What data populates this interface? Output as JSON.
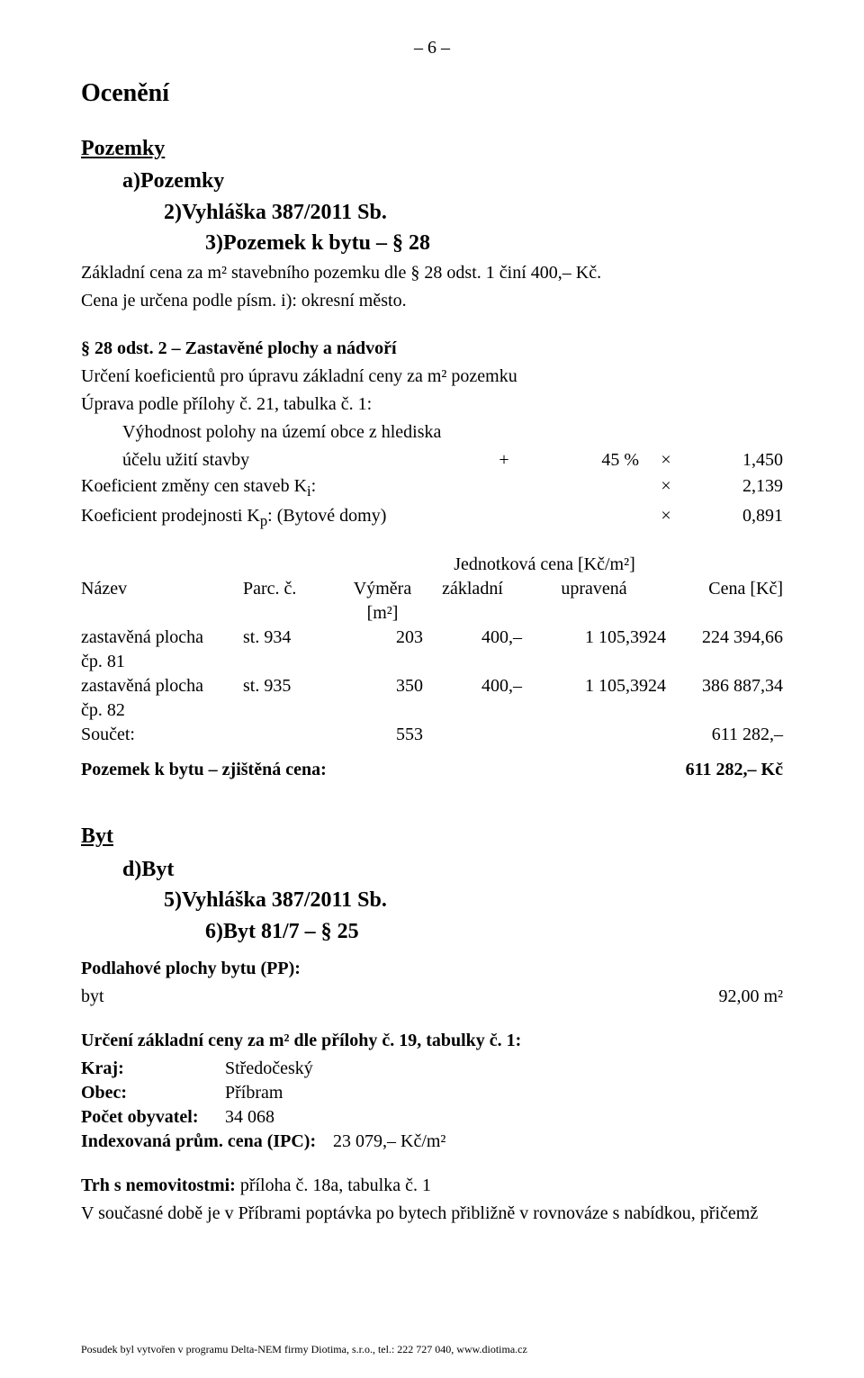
{
  "page_number": "– 6 –",
  "title": "Ocenění",
  "section_pozemky": "Pozemky",
  "lvl_a": "a)Pozemky",
  "lvl_2": "2)Vyhláška 387/2011 Sb.",
  "lvl_3": "3)Pozemek k bytu – § 28",
  "base_line1": "Základní cena za m² stavebního pozemku dle § 28 odst. 1 činí 400,– Kč.",
  "base_line2": "Cena je určena podle písm. i): okresní město.",
  "para28_line1": "§ 28 odst. 2 – Zastavěné plochy a nádvoří",
  "para28_line2": "Určení koeficientů pro úpravu základní ceny za m² pozemku",
  "para28_line3": "Úprava podle přílohy č. 21, tabulka č. 1:",
  "coef1_label": "Výhodnost polohy na území obce z hlediska",
  "coef1_label2": "účelu užití stavby",
  "coef1_op": "+",
  "coef1_pct": "45 %",
  "coef1_mul": "×",
  "coef1_val": "1,450",
  "coef2_label_pre": "Koeficient změny cen staveb K",
  "coef2_label_sub": "i",
  "coef2_label_post": ":",
  "coef2_mul": "×",
  "coef2_val": "2,139",
  "coef3_label_pre": "Koeficient prodejnosti K",
  "coef3_label_sub": "p",
  "coef3_label_post": ": (Bytové domy)",
  "coef3_mul": "×",
  "coef3_val": "0,891",
  "jc_label": "Jednotková cena [Kč/m²]",
  "th_name": "Název",
  "th_parc": "Parc. č.",
  "th_area": "Výměra",
  "th_area_unit": "[m²]",
  "th_base": "základní",
  "th_adj": "upravená",
  "th_price": "Cena [Kč]",
  "rows": [
    {
      "name1": "zastavěná plocha",
      "name2": "čp. 81",
      "parc": "st. 934",
      "area": "203",
      "base": "400,–",
      "adj": "1 105,3924",
      "price": "224 394,66"
    },
    {
      "name1": "zastavěná plocha",
      "name2": "čp. 82",
      "parc": "st. 935",
      "area": "350",
      "base": "400,–",
      "adj": "1 105,3924",
      "price": "386 887,34"
    }
  ],
  "sum_label": "Součet:",
  "sum_area": "553",
  "sum_price": "611 282,–",
  "final_label": "Pozemek k bytu – zjištěná cena:",
  "final_value": "611 282,– Kč",
  "section_byt": "Byt",
  "lvl_d": "d)Byt",
  "lvl_5": "5)Vyhláška 387/2011 Sb.",
  "lvl_6": "6)Byt 81/7 – § 25",
  "pp_title": "Podlahové plochy bytu (PP):",
  "pp_row_l": "byt",
  "pp_row_r": "92,00 m²",
  "base_price_title": "Určení základní ceny za m² dle přílohy č. 19, tabulky č. 1:",
  "kv": {
    "kraj_k": "Kraj:",
    "kraj_v": "Středočeský",
    "obec_k": "Obec:",
    "obec_v": "Příbram",
    "pocet_k": "Počet obyvatel:",
    "pocet_v": "34 068",
    "ipc_k": "Indexovaná prům. cena (IPC):",
    "ipc_v": "23 079,– Kč/m²"
  },
  "trh_line_pre": "Trh s nemovitostmi:",
  "trh_line_post": " příloha č. 18a, tabulka č. 1",
  "trh_para": "V současné době je v Příbrami poptávka po bytech přibližně v rovnováze s nabídkou, přičemž",
  "footer": "Posudek byl vytvořen v programu Delta-NEM firmy Diotima, s.r.o., tel.: 222 727 040, www.diotima.cz"
}
